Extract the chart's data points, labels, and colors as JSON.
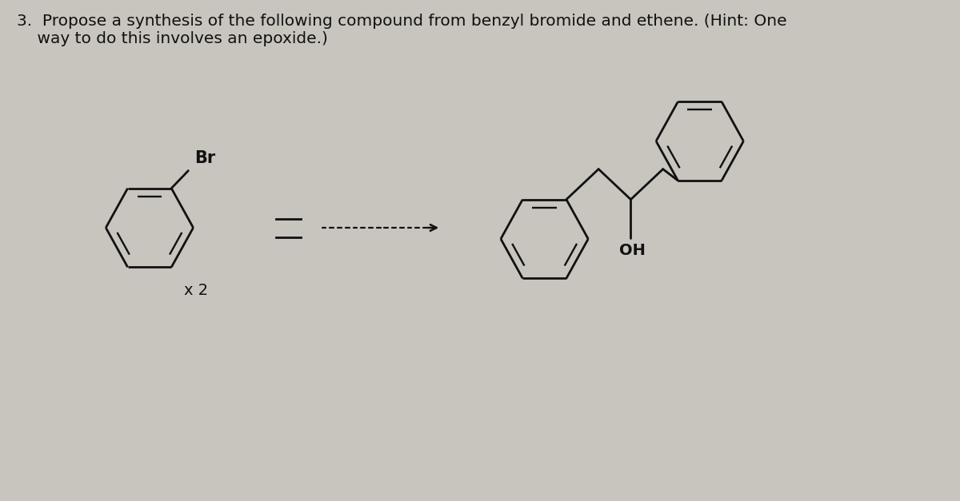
{
  "background_color": "#c8c4be",
  "text_question": "3.  Propose a synthesis of the following compound from benzyl bromide and ethene. (Hint: One\n    way to do this involves an epoxide.)",
  "text_fontsize": 14.5,
  "label_br": "Br",
  "label_x2": "x 2",
  "label_oh": "OH",
  "line_color": "#111111",
  "line_width": 2.0,
  "inner_lw": 1.7
}
